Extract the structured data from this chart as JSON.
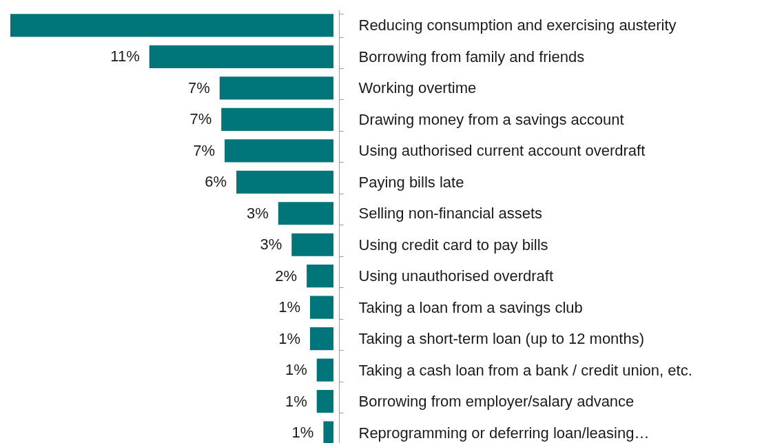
{
  "chart_data": {
    "type": "bar",
    "orientation": "horizontal",
    "tick_labels": "y",
    "categories": [
      "Reducing consumption and exercising austerity",
      "Borrowing from family and friends",
      "Working overtime",
      "Drawing money from a savings account",
      "Using authorised current account overdraft",
      "Paying bills late",
      "Selling non-financial assets",
      "Using credit card to pay bills",
      "Using unauthorised overdraft",
      "Taking a loan from a savings club",
      "Taking a short-term loan (up to 12 months)",
      "Taking a cash loan from a bank / credit union, etc.",
      "Borrowing from employer/salary advance",
      "Reprogramming or deferring loan/leasing…"
    ],
    "values": [
      19.3,
      11.0,
      6.8,
      6.7,
      6.5,
      5.8,
      3.3,
      2.5,
      1.6,
      1.4,
      1.4,
      1.0,
      1.0,
      0.6
    ],
    "value_labels": [
      null,
      "11%",
      "7%",
      "7%",
      "7%",
      "6%",
      "3%",
      "3%",
      "2%",
      "1%",
      "1%",
      "1%",
      "1%",
      "1%"
    ],
    "color": "#00767a"
  }
}
